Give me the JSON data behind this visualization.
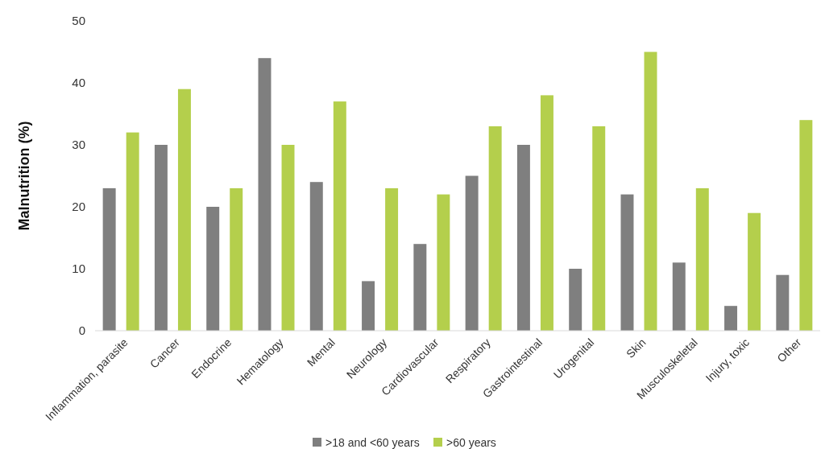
{
  "chart_data": {
    "type": "bar",
    "ylabel": "Malnutrition (%)",
    "categories": [
      "Inflammation, parasite",
      "Cancer",
      "Endocrine",
      "Hematology",
      "Mental",
      "Neurology",
      "Cardiovascular",
      "Respiratory",
      "Gastrointestinal",
      "Urogenital",
      "Skin",
      "Musculoskeletal",
      "Injury, toxic",
      "Other"
    ],
    "series": [
      {
        "name": ">18 and <60 years",
        "color": "#7f7f7f",
        "values": [
          23,
          30,
          20,
          44,
          24,
          8,
          14,
          25,
          30,
          10,
          22,
          11,
          4,
          9
        ]
      },
      {
        "name": ">60 years",
        "color": "#b4cf4c",
        "values": [
          32,
          39,
          23,
          30,
          37,
          23,
          22,
          33,
          38,
          33,
          45,
          23,
          19,
          34
        ]
      }
    ],
    "ylim": [
      0,
      50
    ],
    "yticks": [
      0,
      10,
      20,
      30,
      40,
      50
    ],
    "grid": false,
    "legend": "bottom"
  }
}
